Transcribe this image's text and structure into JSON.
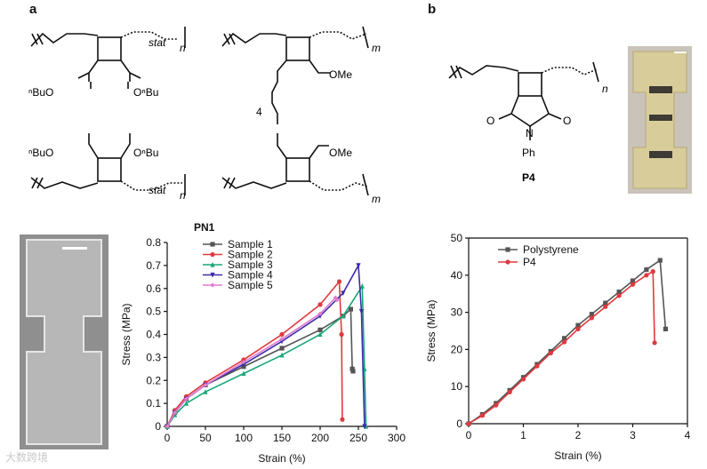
{
  "panel_labels": {
    "a": "a",
    "b": "b"
  },
  "chem_a": {
    "stat": "stat",
    "n": "n",
    "m": "m",
    "bu_ester_left": "ⁿBuO",
    "bu_ester_right": "OⁿBu",
    "ome": "OMe",
    "linker_count": "4"
  },
  "chem_b": {
    "n": "n",
    "o_left": "O",
    "o_right": "O",
    "n_atom": "N",
    "ph": "Ph",
    "compound_label": "P4"
  },
  "watermark": "大数跨境",
  "chart_data": [
    {
      "type": "line",
      "title": "PN1",
      "xlabel": "Strain (%)",
      "ylabel": "Stress (MPa)",
      "xlim": [
        0,
        300
      ],
      "ylim": [
        0,
        0.8
      ],
      "xticks": [
        0,
        50,
        100,
        150,
        200,
        250,
        300
      ],
      "yticks": [
        0,
        0.1,
        0.2,
        0.3,
        0.4,
        0.5,
        0.6,
        0.7,
        0.8
      ],
      "legend_position": "top-left",
      "series": [
        {
          "name": "Sample 1",
          "color": "#555555",
          "marker": "square",
          "points": [
            [
              0,
              0
            ],
            [
              10,
              0.06
            ],
            [
              25,
              0.12
            ],
            [
              50,
              0.18
            ],
            [
              100,
              0.26
            ],
            [
              150,
              0.34
            ],
            [
              200,
              0.42
            ],
            [
              230,
              0.48
            ],
            [
              240,
              0.51
            ],
            [
              242,
              0.25
            ],
            [
              243,
              0.24
            ]
          ]
        },
        {
          "name": "Sample 2",
          "color": "#e0393e",
          "marker": "circle",
          "points": [
            [
              0,
              0
            ],
            [
              10,
              0.07
            ],
            [
              25,
              0.13
            ],
            [
              50,
              0.19
            ],
            [
              100,
              0.29
            ],
            [
              150,
              0.4
            ],
            [
              200,
              0.53
            ],
            [
              225,
              0.63
            ],
            [
              228,
              0.4
            ],
            [
              229,
              0.03
            ]
          ]
        },
        {
          "name": "Sample 3",
          "color": "#1aa67a",
          "marker": "triangle-up",
          "points": [
            [
              0,
              0
            ],
            [
              10,
              0.05
            ],
            [
              25,
              0.1
            ],
            [
              50,
              0.15
            ],
            [
              100,
              0.23
            ],
            [
              150,
              0.31
            ],
            [
              200,
              0.4
            ],
            [
              230,
              0.48
            ],
            [
              255,
              0.61
            ],
            [
              258,
              0.25
            ],
            [
              260,
              0.0
            ]
          ]
        },
        {
          "name": "Sample 4",
          "color": "#3a2ca8",
          "marker": "triangle-down",
          "points": [
            [
              0,
              0
            ],
            [
              10,
              0.06
            ],
            [
              25,
              0.12
            ],
            [
              50,
              0.18
            ],
            [
              100,
              0.27
            ],
            [
              150,
              0.37
            ],
            [
              200,
              0.48
            ],
            [
              230,
              0.58
            ],
            [
              250,
              0.7
            ],
            [
              254,
              0.5
            ],
            [
              258,
              0.0
            ]
          ]
        },
        {
          "name": "Sample 5",
          "color": "#e07ad0",
          "marker": "diamond",
          "points": [
            [
              0,
              0
            ],
            [
              10,
              0.06
            ],
            [
              25,
              0.12
            ],
            [
              50,
              0.18
            ],
            [
              100,
              0.28
            ],
            [
              150,
              0.38
            ],
            [
              200,
              0.49
            ],
            [
              220,
              0.56
            ],
            [
              222,
              0.55
            ]
          ]
        }
      ]
    },
    {
      "type": "line",
      "title": "",
      "xlabel": "Strain (%)",
      "ylabel": "Stress (MPa)",
      "xlim": [
        0,
        4
      ],
      "ylim": [
        0,
        50
      ],
      "xticks": [
        0,
        1,
        2,
        3,
        4
      ],
      "yticks": [
        0,
        10,
        20,
        30,
        40,
        50
      ],
      "legend_position": "top-left",
      "series": [
        {
          "name": "Polystyrene",
          "color": "#555555",
          "marker": "square",
          "points": [
            [
              0,
              0
            ],
            [
              0.25,
              2.5
            ],
            [
              0.5,
              5.5
            ],
            [
              0.75,
              9
            ],
            [
              1.0,
              12.5
            ],
            [
              1.25,
              16
            ],
            [
              1.5,
              19.5
            ],
            [
              1.75,
              23
            ],
            [
              2.0,
              26.5
            ],
            [
              2.25,
              29.5
            ],
            [
              2.5,
              32.5
            ],
            [
              2.75,
              35.5
            ],
            [
              3.0,
              38.5
            ],
            [
              3.25,
              41.5
            ],
            [
              3.5,
              44
            ],
            [
              3.6,
              25.5
            ]
          ]
        },
        {
          "name": "P4",
          "color": "#e0393e",
          "marker": "circle",
          "points": [
            [
              0,
              0
            ],
            [
              0.25,
              2.2
            ],
            [
              0.5,
              5
            ],
            [
              0.75,
              8.5
            ],
            [
              1.0,
              12
            ],
            [
              1.25,
              15.5
            ],
            [
              1.5,
              19
            ],
            [
              1.75,
              22
            ],
            [
              2.0,
              25.5
            ],
            [
              2.25,
              28.5
            ],
            [
              2.5,
              31.5
            ],
            [
              2.75,
              34.5
            ],
            [
              3.0,
              37.5
            ],
            [
              3.25,
              40
            ],
            [
              3.37,
              41
            ],
            [
              3.4,
              21.8
            ]
          ]
        }
      ]
    }
  ]
}
